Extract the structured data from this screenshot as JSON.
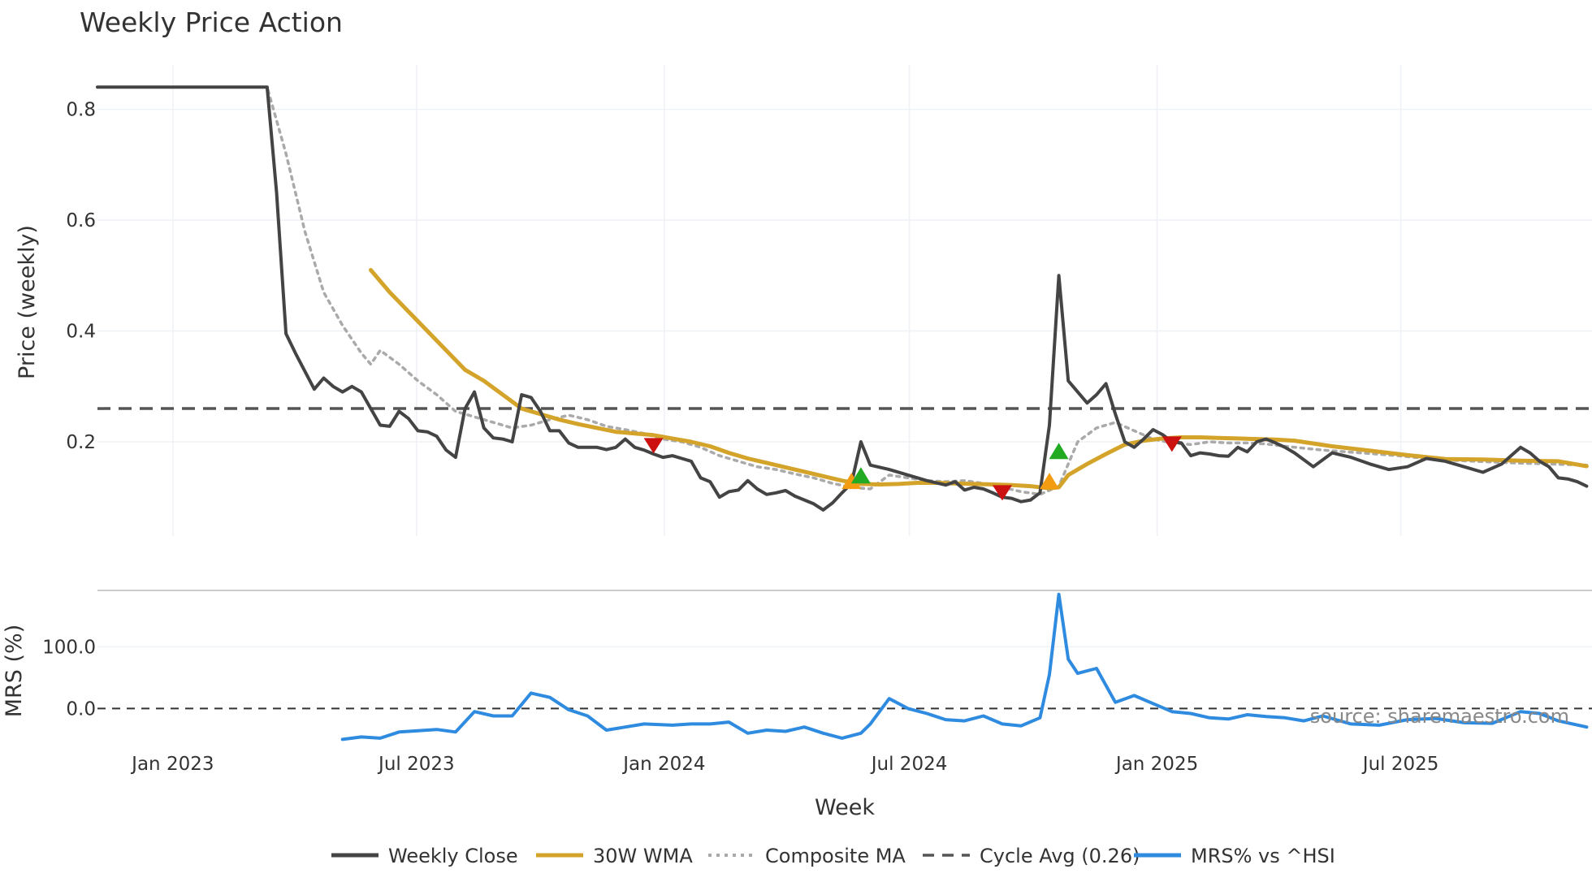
{
  "chart_data": {
    "type": "line",
    "title": "Weekly Price Action",
    "xlabel": "Week",
    "ylabel": "Price (weekly)",
    "y2label": "MRS (%)",
    "watermark": "source: sharemaestro.com",
    "x_ticks": [
      "Jan 2023",
      "Jul 2023",
      "Jan 2024",
      "Jul 2024",
      "Jan 2025",
      "Jul 2025"
    ],
    "y_ticks": [
      "0.8",
      "0.6",
      "0.4",
      "0.2"
    ],
    "y_tick_values": [
      0.8,
      0.6,
      0.4,
      0.2
    ],
    "y2_ticks": [
      "100.0",
      "0.0"
    ],
    "y2_tick_values": [
      100,
      0
    ],
    "ylim": [
      0.03,
      0.88
    ],
    "y2lim": [
      -60,
      190
    ],
    "cycle_avg": 0.26,
    "legend": [
      "Weekly Close",
      "30W WMA",
      "Composite MA",
      "Cycle Avg (0.26)",
      "MRS% vs ^HSI"
    ],
    "colors": {
      "close": "#444444",
      "wma": "#D4A32A",
      "composite": "#AAAAAA",
      "cycle": "#555555",
      "mrs": "#2E8BE0",
      "grid": "#EEF1F5",
      "signal_red": "#CC1111",
      "signal_green": "#22AA22",
      "signal_orange": "#F39C12"
    },
    "series": [
      {
        "name": "Weekly Close",
        "x": [
          "2022-11-06",
          "2023-01-01",
          "2023-03-12",
          "2023-03-19",
          "2023-03-26",
          "2023-04-02",
          "2023-04-16",
          "2023-04-23",
          "2023-04-30",
          "2023-05-07",
          "2023-05-14",
          "2023-05-21",
          "2023-05-28",
          "2023-06-04",
          "2023-06-11",
          "2023-06-18",
          "2023-06-25",
          "2023-07-02",
          "2023-07-09",
          "2023-07-16",
          "2023-07-23",
          "2023-07-30",
          "2023-08-06",
          "2023-08-13",
          "2023-08-20",
          "2023-08-27",
          "2023-09-03",
          "2023-09-10",
          "2023-09-17",
          "2023-09-24",
          "2023-10-01",
          "2023-10-08",
          "2023-10-15",
          "2023-10-22",
          "2023-10-29",
          "2023-11-05",
          "2023-11-12",
          "2023-11-19",
          "2023-11-26",
          "2023-12-03",
          "2023-12-10",
          "2023-12-17",
          "2023-12-24",
          "2023-12-31",
          "2024-01-07",
          "2024-01-14",
          "2024-01-21",
          "2024-01-28",
          "2024-02-04",
          "2024-02-11",
          "2024-02-18",
          "2024-02-25",
          "2024-03-03",
          "2024-03-10",
          "2024-03-17",
          "2024-03-24",
          "2024-03-31",
          "2024-04-07",
          "2024-04-14",
          "2024-04-21",
          "2024-04-28",
          "2024-05-05",
          "2024-05-12",
          "2024-05-19",
          "2024-05-26",
          "2024-06-02",
          "2024-06-16",
          "2024-06-30",
          "2024-07-14",
          "2024-07-28",
          "2024-08-04",
          "2024-08-11",
          "2024-08-18",
          "2024-08-25",
          "2024-09-01",
          "2024-09-08",
          "2024-09-15",
          "2024-09-22",
          "2024-09-29",
          "2024-10-06",
          "2024-10-13",
          "2024-10-20",
          "2024-10-27",
          "2024-11-03",
          "2024-11-10",
          "2024-11-17",
          "2024-11-24",
          "2024-12-01",
          "2024-12-08",
          "2024-12-15",
          "2024-12-22",
          "2024-12-29",
          "2025-01-05",
          "2025-01-12",
          "2025-01-19",
          "2025-01-26",
          "2025-02-02",
          "2025-02-09",
          "2025-02-16",
          "2025-02-23",
          "2025-03-02",
          "2025-03-09",
          "2025-03-16",
          "2025-03-23",
          "2025-03-30",
          "2025-04-06",
          "2025-04-13",
          "2025-04-27",
          "2025-05-11",
          "2025-05-25",
          "2025-06-08",
          "2025-06-22",
          "2025-07-06",
          "2025-07-20",
          "2025-08-03",
          "2025-08-17",
          "2025-08-31",
          "2025-09-14",
          "2025-09-28",
          "2025-10-05",
          "2025-10-12",
          "2025-10-19",
          "2025-10-26",
          "2025-11-02",
          "2025-11-09",
          "2025-11-16"
        ],
        "values": [
          0.84,
          0.84,
          0.84,
          0.65,
          0.395,
          0.36,
          0.295,
          0.315,
          0.3,
          0.29,
          0.3,
          0.29,
          0.26,
          0.23,
          0.228,
          0.255,
          0.242,
          0.22,
          0.218,
          0.21,
          0.185,
          0.172,
          0.26,
          0.29,
          0.225,
          0.207,
          0.205,
          0.2,
          0.285,
          0.28,
          0.255,
          0.22,
          0.22,
          0.198,
          0.19,
          0.19,
          0.19,
          0.186,
          0.19,
          0.205,
          0.19,
          0.185,
          0.178,
          0.172,
          0.175,
          0.17,
          0.165,
          0.135,
          0.128,
          0.1,
          0.11,
          0.113,
          0.13,
          0.115,
          0.105,
          0.108,
          0.112,
          0.102,
          0.095,
          0.088,
          0.077,
          0.09,
          0.108,
          0.125,
          0.2,
          0.158,
          0.15,
          0.14,
          0.13,
          0.122,
          0.128,
          0.113,
          0.118,
          0.115,
          0.108,
          0.1,
          0.098,
          0.092,
          0.095,
          0.108,
          0.23,
          0.5,
          0.31,
          0.29,
          0.27,
          0.285,
          0.305,
          0.25,
          0.2,
          0.19,
          0.205,
          0.222,
          0.213,
          0.2,
          0.198,
          0.175,
          0.18,
          0.178,
          0.175,
          0.174,
          0.19,
          0.182,
          0.2,
          0.205,
          0.198,
          0.19,
          0.18,
          0.155,
          0.18,
          0.172,
          0.16,
          0.15,
          0.155,
          0.17,
          0.165,
          0.155,
          0.145,
          0.16,
          0.19,
          0.18,
          0.165,
          0.155,
          0.135,
          0.133,
          0.128,
          0.12
        ]
      },
      {
        "name": "30W WMA",
        "x": [
          "2023-05-28",
          "2023-06-11",
          "2023-06-25",
          "2023-07-09",
          "2023-07-23",
          "2023-08-06",
          "2023-08-20",
          "2023-09-03",
          "2023-09-17",
          "2023-10-01",
          "2023-10-15",
          "2023-10-29",
          "2023-11-12",
          "2023-11-26",
          "2023-12-10",
          "2023-12-24",
          "2024-01-07",
          "2024-01-21",
          "2024-02-04",
          "2024-02-18",
          "2024-03-03",
          "2024-03-17",
          "2024-03-31",
          "2024-04-14",
          "2024-04-28",
          "2024-05-12",
          "2024-05-26",
          "2024-06-09",
          "2024-06-23",
          "2024-07-07",
          "2024-07-21",
          "2024-08-04",
          "2024-08-18",
          "2024-09-01",
          "2024-09-15",
          "2024-09-29",
          "2024-10-13",
          "2024-10-20",
          "2024-10-27",
          "2024-11-10",
          "2024-11-24",
          "2024-12-08",
          "2024-12-22",
          "2025-01-05",
          "2025-01-19",
          "2025-02-02",
          "2025-02-16",
          "2025-03-02",
          "2025-03-16",
          "2025-03-30",
          "2025-04-13",
          "2025-05-11",
          "2025-06-08",
          "2025-07-06",
          "2025-08-03",
          "2025-08-31",
          "2025-09-28",
          "2025-10-26",
          "2025-11-16"
        ],
        "values": [
          0.51,
          0.47,
          0.435,
          0.4,
          0.365,
          0.33,
          0.31,
          0.285,
          0.26,
          0.25,
          0.24,
          0.232,
          0.225,
          0.218,
          0.215,
          0.212,
          0.206,
          0.2,
          0.192,
          0.18,
          0.17,
          0.162,
          0.154,
          0.146,
          0.138,
          0.13,
          0.124,
          0.123,
          0.124,
          0.126,
          0.126,
          0.125,
          0.124,
          0.123,
          0.122,
          0.12,
          0.116,
          0.118,
          0.14,
          0.16,
          0.178,
          0.195,
          0.202,
          0.206,
          0.208,
          0.208,
          0.207,
          0.206,
          0.205,
          0.204,
          0.202,
          0.192,
          0.184,
          0.176,
          0.169,
          0.168,
          0.166,
          0.165,
          0.156
        ]
      },
      {
        "name": "Composite MA",
        "x": [
          "2023-01-01",
          "2023-03-12",
          "2023-03-26",
          "2023-04-09",
          "2023-04-23",
          "2023-05-07",
          "2023-05-21",
          "2023-05-28",
          "2023-06-04",
          "2023-06-18",
          "2023-07-02",
          "2023-07-16",
          "2023-07-30",
          "2023-08-13",
          "2023-08-27",
          "2023-09-10",
          "2023-09-24",
          "2023-10-08",
          "2023-10-22",
          "2023-11-05",
          "2023-11-19",
          "2023-12-03",
          "2023-12-17",
          "2023-12-31",
          "2024-01-14",
          "2024-01-28",
          "2024-02-11",
          "2024-02-25",
          "2024-03-10",
          "2024-03-24",
          "2024-04-07",
          "2024-04-21",
          "2024-05-05",
          "2024-05-19",
          "2024-06-02",
          "2024-06-16",
          "2024-06-30",
          "2024-07-14",
          "2024-07-28",
          "2024-08-11",
          "2024-08-25",
          "2024-09-08",
          "2024-09-22",
          "2024-10-06",
          "2024-10-20",
          "2024-11-03",
          "2024-11-17",
          "2024-12-01",
          "2024-12-15",
          "2024-12-29",
          "2025-01-12",
          "2025-01-26",
          "2025-02-09",
          "2025-02-23",
          "2025-03-09",
          "2025-03-23",
          "2025-04-06",
          "2025-05-04",
          "2025-06-01",
          "2025-06-29",
          "2025-07-27",
          "2025-08-24",
          "2025-09-21",
          "2025-10-19",
          "2025-11-16"
        ],
        "values": [
          0.84,
          0.84,
          0.72,
          0.58,
          0.47,
          0.41,
          0.36,
          0.34,
          0.365,
          0.34,
          0.31,
          0.285,
          0.255,
          0.245,
          0.235,
          0.225,
          0.23,
          0.24,
          0.248,
          0.24,
          0.228,
          0.222,
          0.215,
          0.205,
          0.2,
          0.19,
          0.175,
          0.165,
          0.155,
          0.15,
          0.142,
          0.135,
          0.125,
          0.118,
          0.115,
          0.14,
          0.135,
          0.13,
          0.128,
          0.13,
          0.125,
          0.118,
          0.11,
          0.105,
          0.12,
          0.2,
          0.225,
          0.235,
          0.22,
          0.205,
          0.198,
          0.195,
          0.2,
          0.198,
          0.198,
          0.196,
          0.192,
          0.185,
          0.18,
          0.175,
          0.168,
          0.165,
          0.162,
          0.16,
          0.158
        ]
      },
      {
        "name": "MRS% vs ^HSI",
        "x": [
          "2023-05-07",
          "2023-05-21",
          "2023-06-04",
          "2023-06-18",
          "2023-07-02",
          "2023-07-16",
          "2023-07-30",
          "2023-08-13",
          "2023-08-27",
          "2023-09-10",
          "2023-09-24",
          "2023-10-08",
          "2023-10-22",
          "2023-11-05",
          "2023-11-19",
          "2023-12-03",
          "2023-12-17",
          "2024-01-07",
          "2024-01-21",
          "2024-02-04",
          "2024-02-18",
          "2024-03-03",
          "2024-03-17",
          "2024-03-31",
          "2024-04-14",
          "2024-04-28",
          "2024-05-12",
          "2024-05-26",
          "2024-06-02",
          "2024-06-16",
          "2024-06-30",
          "2024-07-14",
          "2024-07-28",
          "2024-08-11",
          "2024-08-25",
          "2024-09-08",
          "2024-09-22",
          "2024-10-06",
          "2024-10-13",
          "2024-10-20",
          "2024-10-27",
          "2024-11-03",
          "2024-11-17",
          "2024-12-01",
          "2024-12-15",
          "2024-12-29",
          "2025-01-12",
          "2025-01-26",
          "2025-02-09",
          "2025-02-23",
          "2025-03-09",
          "2025-03-23",
          "2025-04-06",
          "2025-04-20",
          "2025-05-04",
          "2025-05-25",
          "2025-06-15",
          "2025-07-06",
          "2025-07-27",
          "2025-08-17",
          "2025-09-07",
          "2025-09-28",
          "2025-10-12",
          "2025-10-26",
          "2025-11-16"
        ],
        "values": [
          -50,
          -46,
          -48,
          -38,
          -36,
          -34,
          -38,
          -5,
          -12,
          -12,
          25,
          18,
          -2,
          -12,
          -35,
          -30,
          -25,
          -27,
          -25,
          -25,
          -22,
          -40,
          -35,
          -37,
          -30,
          -40,
          -48,
          -40,
          -25,
          16,
          0,
          -8,
          -18,
          -20,
          -12,
          -25,
          -28,
          -15,
          55,
          185,
          80,
          57,
          65,
          10,
          21,
          8,
          -5,
          -8,
          -15,
          -17,
          -10,
          -13,
          -15,
          -20,
          -12,
          -25,
          -27,
          -18,
          -16,
          -23,
          -24,
          -5,
          -8,
          -20,
          -30
        ]
      }
    ],
    "signals": [
      {
        "type": "sell",
        "color": "red",
        "x": "2023-12-24",
        "y": 0.195
      },
      {
        "type": "buy",
        "color": "orange",
        "x": "2024-05-19",
        "y": 0.128
      },
      {
        "type": "buy",
        "color": "green",
        "x": "2024-05-26",
        "y": 0.138
      },
      {
        "type": "sell",
        "color": "red",
        "x": "2024-09-08",
        "y": 0.11
      },
      {
        "type": "buy",
        "color": "orange",
        "x": "2024-10-13",
        "y": 0.128
      },
      {
        "type": "buy",
        "color": "green",
        "x": "2024-10-20",
        "y": 0.182
      },
      {
        "type": "sell",
        "color": "red",
        "x": "2025-01-12",
        "y": 0.198
      }
    ]
  }
}
